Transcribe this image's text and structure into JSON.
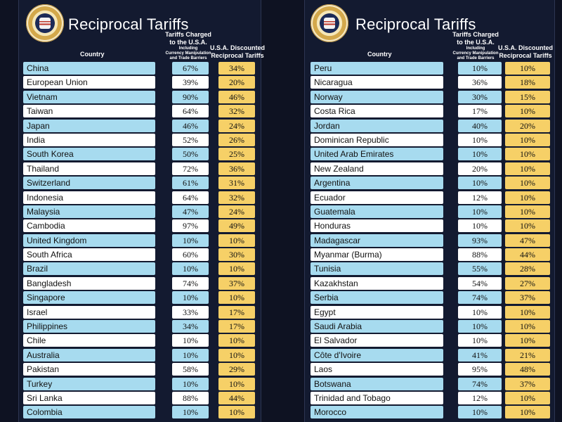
{
  "title": "Reciprocal Tariffs",
  "headers": {
    "country": "Country",
    "charged_line1": "Tariffs Charged",
    "charged_line2": "to the U.S.A.",
    "charged_sub1": "Including",
    "charged_sub2": "Currency Manipulation",
    "charged_sub3": "and Trade Barriers",
    "discounted_line1": "U.S.A. Discounted",
    "discounted_line2": "Reciprocal Tariffs"
  },
  "seal_text": "SEAL OF THE PRESIDENT OF THE UNITED STATES",
  "colors": {
    "background": "#13182b",
    "country_highlight": "#a7dbef",
    "discount_cell": "#f6d067"
  },
  "left_table": [
    {
      "country": "China",
      "charged": "67%",
      "discounted": "34%"
    },
    {
      "country": "European Union",
      "charged": "39%",
      "discounted": "20%"
    },
    {
      "country": "Vietnam",
      "charged": "90%",
      "discounted": "46%"
    },
    {
      "country": "Taiwan",
      "charged": "64%",
      "discounted": "32%"
    },
    {
      "country": "Japan",
      "charged": "46%",
      "discounted": "24%"
    },
    {
      "country": "India",
      "charged": "52%",
      "discounted": "26%"
    },
    {
      "country": "South Korea",
      "charged": "50%",
      "discounted": "25%"
    },
    {
      "country": "Thailand",
      "charged": "72%",
      "discounted": "36%"
    },
    {
      "country": "Switzerland",
      "charged": "61%",
      "discounted": "31%"
    },
    {
      "country": "Indonesia",
      "charged": "64%",
      "discounted": "32%"
    },
    {
      "country": "Malaysia",
      "charged": "47%",
      "discounted": "24%"
    },
    {
      "country": "Cambodia",
      "charged": "97%",
      "discounted": "49%"
    },
    {
      "country": "United Kingdom",
      "charged": "10%",
      "discounted": "10%"
    },
    {
      "country": "South Africa",
      "charged": "60%",
      "discounted": "30%"
    },
    {
      "country": "Brazil",
      "charged": "10%",
      "discounted": "10%"
    },
    {
      "country": "Bangladesh",
      "charged": "74%",
      "discounted": "37%"
    },
    {
      "country": "Singapore",
      "charged": "10%",
      "discounted": "10%"
    },
    {
      "country": "Israel",
      "charged": "33%",
      "discounted": "17%"
    },
    {
      "country": "Philippines",
      "charged": "34%",
      "discounted": "17%"
    },
    {
      "country": "Chile",
      "charged": "10%",
      "discounted": "10%"
    },
    {
      "country": "Australia",
      "charged": "10%",
      "discounted": "10%"
    },
    {
      "country": "Pakistan",
      "charged": "58%",
      "discounted": "29%"
    },
    {
      "country": "Turkey",
      "charged": "10%",
      "discounted": "10%"
    },
    {
      "country": "Sri Lanka",
      "charged": "88%",
      "discounted": "44%"
    },
    {
      "country": "Colombia",
      "charged": "10%",
      "discounted": "10%"
    }
  ],
  "right_table": [
    {
      "country": "Peru",
      "charged": "10%",
      "discounted": "10%"
    },
    {
      "country": "Nicaragua",
      "charged": "36%",
      "discounted": "18%"
    },
    {
      "country": "Norway",
      "charged": "30%",
      "discounted": "15%"
    },
    {
      "country": "Costa Rica",
      "charged": "17%",
      "discounted": "10%"
    },
    {
      "country": "Jordan",
      "charged": "40%",
      "discounted": "20%"
    },
    {
      "country": "Dominican Republic",
      "charged": "10%",
      "discounted": "10%"
    },
    {
      "country": "United Arab Emirates",
      "charged": "10%",
      "discounted": "10%"
    },
    {
      "country": "New Zealand",
      "charged": "20%",
      "discounted": "10%"
    },
    {
      "country": "Argentina",
      "charged": "10%",
      "discounted": "10%"
    },
    {
      "country": "Ecuador",
      "charged": "12%",
      "discounted": "10%"
    },
    {
      "country": "Guatemala",
      "charged": "10%",
      "discounted": "10%"
    },
    {
      "country": "Honduras",
      "charged": "10%",
      "discounted": "10%"
    },
    {
      "country": "Madagascar",
      "charged": "93%",
      "discounted": "47%"
    },
    {
      "country": "Myanmar (Burma)",
      "charged": "88%",
      "discounted": "44%"
    },
    {
      "country": "Tunisia",
      "charged": "55%",
      "discounted": "28%"
    },
    {
      "country": "Kazakhstan",
      "charged": "54%",
      "discounted": "27%"
    },
    {
      "country": "Serbia",
      "charged": "74%",
      "discounted": "37%"
    },
    {
      "country": "Egypt",
      "charged": "10%",
      "discounted": "10%"
    },
    {
      "country": "Saudi Arabia",
      "charged": "10%",
      "discounted": "10%"
    },
    {
      "country": "El Salvador",
      "charged": "10%",
      "discounted": "10%"
    },
    {
      "country": "Côte d'Ivoire",
      "charged": "41%",
      "discounted": "21%"
    },
    {
      "country": "Laos",
      "charged": "95%",
      "discounted": "48%"
    },
    {
      "country": "Botswana",
      "charged": "74%",
      "discounted": "37%"
    },
    {
      "country": "Trinidad and Tobago",
      "charged": "12%",
      "discounted": "10%"
    },
    {
      "country": "Morocco",
      "charged": "10%",
      "discounted": "10%"
    }
  ]
}
